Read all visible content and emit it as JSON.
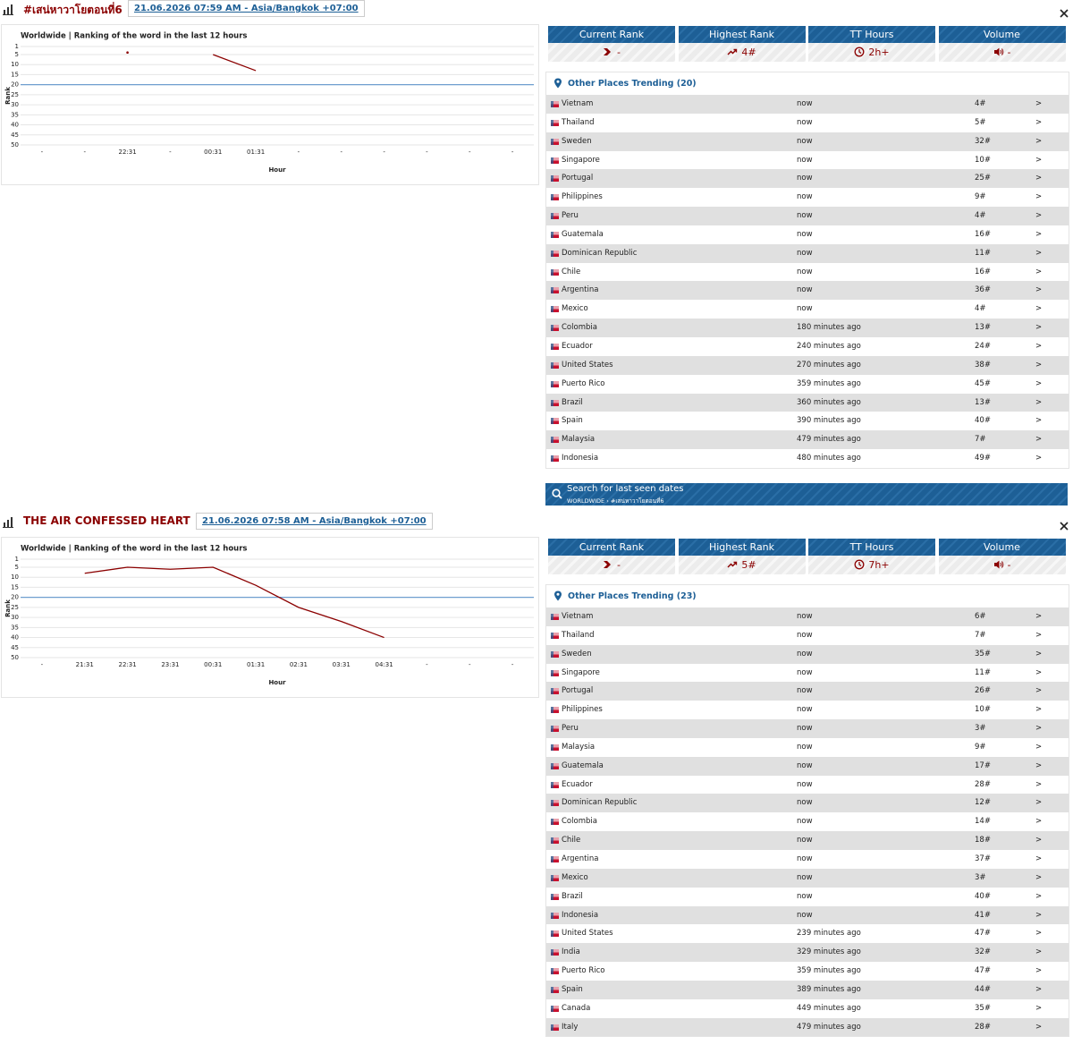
{
  "trends": [
    {
      "title": "#เสน่หาวาโยตอนที่6",
      "date": "21.06.2026 07:59 AM - Asia/Bangkok +07:00",
      "chart_data": {
        "type": "line",
        "title": "Worldwide | Ranking of the word in the last 12 hours",
        "x_label": "Hour",
        "y_label": "Rank",
        "categories": [
          "-",
          "-",
          "22:31",
          "-",
          "00:31",
          "01:31",
          "-",
          "-",
          "-",
          "-",
          "-",
          "-"
        ],
        "values": [
          null,
          null,
          4,
          null,
          5,
          13,
          null,
          null,
          null,
          null,
          null,
          null
        ],
        "color": "#8b0000",
        "ylim": [
          1,
          50
        ],
        "yticks": [
          1,
          5,
          10,
          15,
          20,
          25,
          30,
          35,
          40,
          45,
          50
        ],
        "y_reversed": true,
        "grid": true,
        "reference_line": {
          "value": 20,
          "color": "#6f9fcf"
        }
      },
      "stats": {
        "labels": [
          "Current Rank",
          "Highest Rank",
          "TT Hours",
          "Volume"
        ],
        "values": [
          "-",
          "4#",
          "2h+",
          "-"
        ]
      },
      "places": {
        "title": "Other Places Trending (20)",
        "rows": [
          {
            "country": "Vietnam",
            "time": "now",
            "rank": "4#",
            "more": ">"
          },
          {
            "country": "Thailand",
            "time": "now",
            "rank": "5#",
            "more": ">"
          },
          {
            "country": "Sweden",
            "time": "now",
            "rank": "32#",
            "more": ">"
          },
          {
            "country": "Singapore",
            "time": "now",
            "rank": "10#",
            "more": ">"
          },
          {
            "country": "Portugal",
            "time": "now",
            "rank": "25#",
            "more": ">"
          },
          {
            "country": "Philippines",
            "time": "now",
            "rank": "9#",
            "more": ">"
          },
          {
            "country": "Peru",
            "time": "now",
            "rank": "4#",
            "more": ">"
          },
          {
            "country": "Guatemala",
            "time": "now",
            "rank": "16#",
            "more": ">"
          },
          {
            "country": "Dominican Republic",
            "time": "now",
            "rank": "11#",
            "more": ">"
          },
          {
            "country": "Chile",
            "time": "now",
            "rank": "16#",
            "more": ">"
          },
          {
            "country": "Argentina",
            "time": "now",
            "rank": "36#",
            "more": ">"
          },
          {
            "country": "Mexico",
            "time": "now",
            "rank": "4#",
            "more": ">"
          },
          {
            "country": "Colombia",
            "time": "180 minutes ago",
            "rank": "13#",
            "more": ">"
          },
          {
            "country": "Ecuador",
            "time": "240 minutes ago",
            "rank": "24#",
            "more": ">"
          },
          {
            "country": "United States",
            "time": "270 minutes ago",
            "rank": "38#",
            "more": ">"
          },
          {
            "country": "Puerto Rico",
            "time": "359 minutes ago",
            "rank": "45#",
            "more": ">"
          },
          {
            "country": "Brazil",
            "time": "360 minutes ago",
            "rank": "13#",
            "more": ">"
          },
          {
            "country": "Spain",
            "time": "390 minutes ago",
            "rank": "40#",
            "more": ">"
          },
          {
            "country": "Malaysia",
            "time": "479 minutes ago",
            "rank": "7#",
            "more": ">"
          },
          {
            "country": "Indonesia",
            "time": "480 minutes ago",
            "rank": "49#",
            "more": ">"
          }
        ]
      },
      "search": {
        "title": "Search for last seen dates",
        "path": "WORLDWIDE › #เสน่หาวาโยตอนที่6"
      }
    },
    {
      "title": "THE AIR CONFESSED HEART",
      "date": "21.06.2026 07:58 AM - Asia/Bangkok +07:00",
      "chart_data": {
        "type": "line",
        "title": "Worldwide | Ranking of the word in the last 12 hours",
        "x_label": "Hour",
        "y_label": "Rank",
        "categories": [
          "-",
          "21:31",
          "22:31",
          "23:31",
          "00:31",
          "01:31",
          "02:31",
          "03:31",
          "04:31",
          "-",
          "-",
          "-"
        ],
        "values": [
          null,
          8,
          5,
          6,
          5,
          14,
          25,
          32,
          40,
          null,
          null,
          null
        ],
        "color": "#8b0000",
        "ylim": [
          1,
          50
        ],
        "yticks": [
          1,
          5,
          10,
          15,
          20,
          25,
          30,
          35,
          40,
          45,
          50
        ],
        "y_reversed": true,
        "grid": true,
        "reference_line": {
          "value": 20,
          "color": "#6f9fcf"
        }
      },
      "stats": {
        "labels": [
          "Current Rank",
          "Highest Rank",
          "TT Hours",
          "Volume"
        ],
        "values": [
          "-",
          "5#",
          "7h+",
          "-"
        ]
      },
      "places": {
        "title": "Other Places Trending (23)",
        "rows": [
          {
            "country": "Vietnam",
            "time": "now",
            "rank": "6#",
            "more": ">"
          },
          {
            "country": "Thailand",
            "time": "now",
            "rank": "7#",
            "more": ">"
          },
          {
            "country": "Sweden",
            "time": "now",
            "rank": "35#",
            "more": ">"
          },
          {
            "country": "Singapore",
            "time": "now",
            "rank": "11#",
            "more": ">"
          },
          {
            "country": "Portugal",
            "time": "now",
            "rank": "26#",
            "more": ">"
          },
          {
            "country": "Philippines",
            "time": "now",
            "rank": "10#",
            "more": ">"
          },
          {
            "country": "Peru",
            "time": "now",
            "rank": "3#",
            "more": ">"
          },
          {
            "country": "Malaysia",
            "time": "now",
            "rank": "9#",
            "more": ">"
          },
          {
            "country": "Guatemala",
            "time": "now",
            "rank": "17#",
            "more": ">"
          },
          {
            "country": "Ecuador",
            "time": "now",
            "rank": "28#",
            "more": ">"
          },
          {
            "country": "Dominican Republic",
            "time": "now",
            "rank": "12#",
            "more": ">"
          },
          {
            "country": "Colombia",
            "time": "now",
            "rank": "14#",
            "more": ">"
          },
          {
            "country": "Chile",
            "time": "now",
            "rank": "18#",
            "more": ">"
          },
          {
            "country": "Argentina",
            "time": "now",
            "rank": "37#",
            "more": ">"
          },
          {
            "country": "Mexico",
            "time": "now",
            "rank": "3#",
            "more": ">"
          },
          {
            "country": "Brazil",
            "time": "now",
            "rank": "40#",
            "more": ">"
          },
          {
            "country": "Indonesia",
            "time": "now",
            "rank": "41#",
            "more": ">"
          },
          {
            "country": "United States",
            "time": "239 minutes ago",
            "rank": "47#",
            "more": ">"
          },
          {
            "country": "India",
            "time": "329 minutes ago",
            "rank": "32#",
            "more": ">"
          },
          {
            "country": "Puerto Rico",
            "time": "359 minutes ago",
            "rank": "47#",
            "more": ">"
          },
          {
            "country": "Spain",
            "time": "389 minutes ago",
            "rank": "44#",
            "more": ">"
          },
          {
            "country": "Canada",
            "time": "449 minutes ago",
            "rank": "35#",
            "more": ">"
          },
          {
            "country": "Italy",
            "time": "479 minutes ago",
            "rank": "28#",
            "more": ">"
          }
        ]
      }
    }
  ]
}
